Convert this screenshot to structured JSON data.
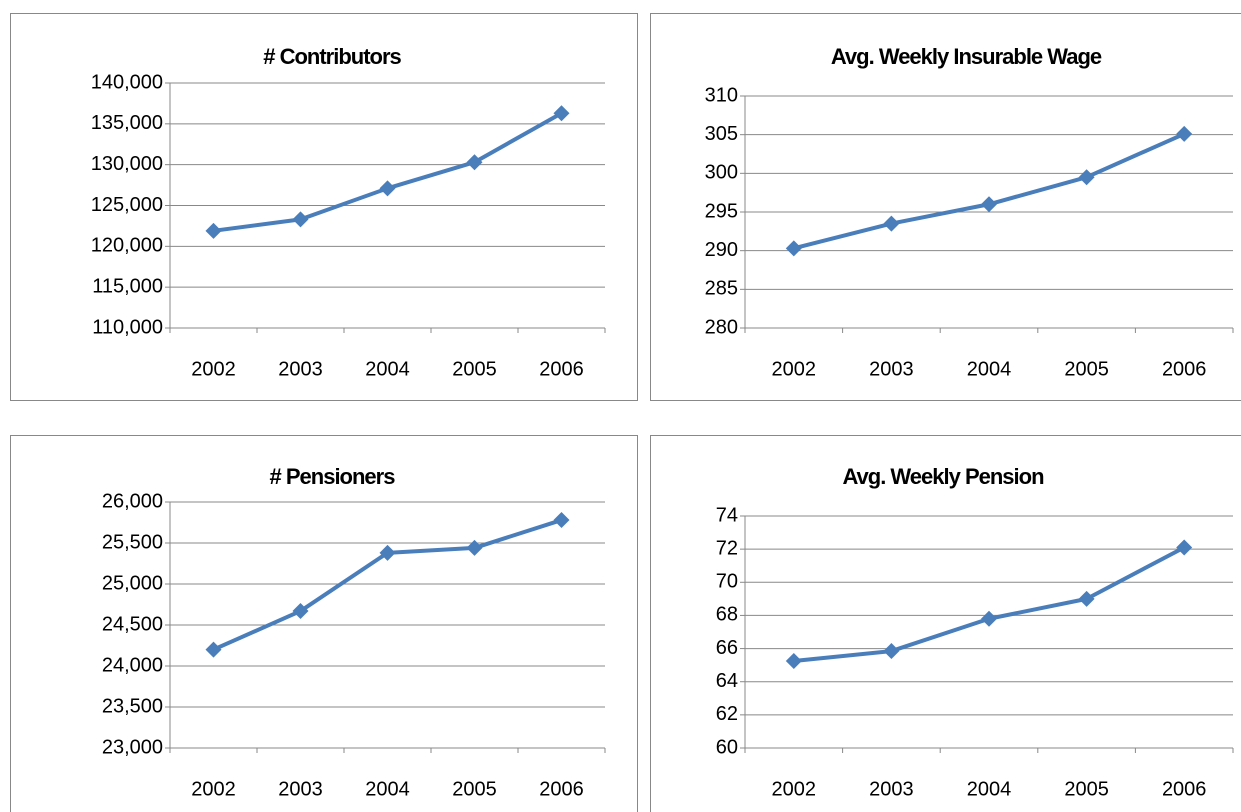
{
  "chart_data": [
    {
      "type": "line",
      "title": "# Contributors",
      "categories": [
        "2002",
        "2003",
        "2004",
        "2005",
        "2006"
      ],
      "series": [
        {
          "name": "Contributors",
          "color": "#4a7ebb",
          "values": [
            121900,
            123300,
            127100,
            130300,
            136300
          ]
        }
      ],
      "ylim": [
        110000,
        140000
      ],
      "yticks": [
        {
          "value": 110000,
          "label": "110,000"
        },
        {
          "value": 115000,
          "label": "115,000"
        },
        {
          "value": 120000,
          "label": "120,000"
        },
        {
          "value": 125000,
          "label": "125,000"
        },
        {
          "value": 130000,
          "label": "130,000"
        },
        {
          "value": 135000,
          "label": "135,000"
        },
        {
          "value": 140000,
          "label": "140,000"
        }
      ],
      "grid": true
    },
    {
      "type": "line",
      "title": "Avg. Weekly Insurable Wage",
      "categories": [
        "2002",
        "2003",
        "2004",
        "2005",
        "2006"
      ],
      "series": [
        {
          "name": "Avg. Weekly Insurable Wage",
          "color": "#4a7ebb",
          "values": [
            290.3,
            293.5,
            296.0,
            299.5,
            305.1
          ]
        }
      ],
      "ylim": [
        280,
        310
      ],
      "yticks": [
        280,
        285,
        290,
        295,
        300,
        305,
        310
      ],
      "grid": true
    },
    {
      "type": "line",
      "title": "# Pensioners",
      "categories": [
        "2002",
        "2003",
        "2004",
        "2005",
        "2006"
      ],
      "series": [
        {
          "name": "Pensioners",
          "color": "#4a7ebb",
          "values": [
            24200,
            24670,
            25380,
            25440,
            25780
          ]
        }
      ],
      "ylim": [
        23000,
        26000
      ],
      "yticks": [
        {
          "value": 23000,
          "label": "23,000"
        },
        {
          "value": 23500,
          "label": "23,500"
        },
        {
          "value": 24000,
          "label": "24,000"
        },
        {
          "value": 24500,
          "label": "24,500"
        },
        {
          "value": 25000,
          "label": "25,000"
        },
        {
          "value": 25500,
          "label": "25,500"
        },
        {
          "value": 26000,
          "label": "26,000"
        }
      ],
      "grid": true
    },
    {
      "type": "line",
      "title": "Avg. Weekly Pension",
      "categories": [
        "2002",
        "2003",
        "2004",
        "2005",
        "2006"
      ],
      "series": [
        {
          "name": "Avg. Weekly Pension",
          "color": "#4a7ebb",
          "values": [
            65.25,
            65.85,
            67.8,
            69.0,
            72.1
          ]
        }
      ],
      "ylim": [
        60,
        74
      ],
      "yticks": [
        60,
        62,
        64,
        66,
        68,
        70,
        72,
        74
      ],
      "grid": true
    }
  ]
}
